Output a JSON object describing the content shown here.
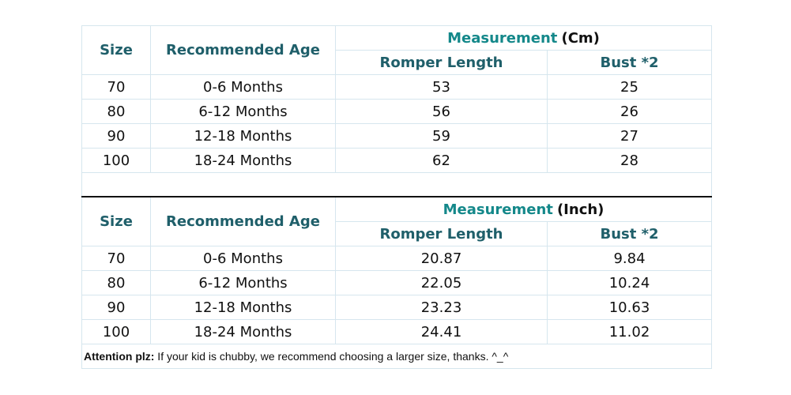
{
  "tables": [
    {
      "headers": {
        "size": "Size",
        "age": "Recommended Age",
        "measurement_word": "Measurement",
        "measurement_unit": "(Cm)",
        "length": "Romper Length",
        "bust": "Bust *2"
      },
      "rows": [
        {
          "size": "70",
          "age": "0-6 Months",
          "length": "53",
          "bust": "25"
        },
        {
          "size": "80",
          "age": "6-12 Months",
          "length": "56",
          "bust": "26"
        },
        {
          "size": "90",
          "age": "12-18 Months",
          "length": "59",
          "bust": "27"
        },
        {
          "size": "100",
          "age": "18-24 Months",
          "length": "62",
          "bust": "28"
        }
      ]
    },
    {
      "headers": {
        "size": "Size",
        "age": "Recommended Age",
        "measurement_word": "Measurement",
        "measurement_unit": "(Inch)",
        "length": "Romper Length",
        "bust": "Bust *2"
      },
      "rows": [
        {
          "size": "70",
          "age": "0-6 Months",
          "length": "20.87",
          "bust": "9.84"
        },
        {
          "size": "80",
          "age": "6-12 Months",
          "length": "22.05",
          "bust": "10.24"
        },
        {
          "size": "90",
          "age": "12-18 Months",
          "length": "23.23",
          "bust": "10.63"
        },
        {
          "size": "100",
          "age": "18-24 Months",
          "length": "24.41",
          "bust": "11.02"
        }
      ]
    }
  ],
  "note": {
    "label": "Attention plz:",
    "text": " If your kid is chubby, we recommend choosing a larger size, thanks. ^_^"
  },
  "colors": {
    "header_text": "#1f5f6a",
    "measurement_word": "#14888a",
    "grid": "#d6e6ee",
    "separator": "#111111"
  }
}
